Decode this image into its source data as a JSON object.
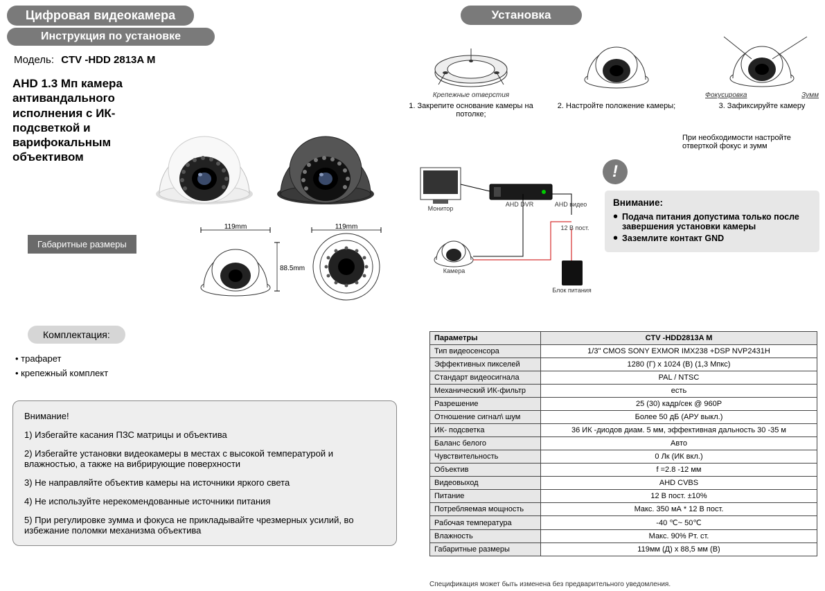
{
  "header": {
    "title": "Цифровая видеокамера",
    "subtitle": "Инструкция по установке",
    "model_label": "Модель:",
    "model_value": "CTV -HDD 2813A M",
    "description": "AHD 1.3 Мп камера антивандального исполнения с ИК-подсветкой  и варифокальным объективом",
    "dim_label": "Габаритные размеры",
    "dim_width": "119mm",
    "dim_height": "88.5mm"
  },
  "installation": {
    "title": "Установка",
    "mount_holes_label": "Крепежные отверстия",
    "focus_label": "Фокусировка",
    "zoom_label": "Зумм",
    "steps": [
      "1. Закрепите основание камеры на потолке;",
      "2. Настройте положение камеры;",
      "3. Зафиксируйте камеру"
    ],
    "adjust_note": "При необходимости настройте отверткой фокус и зумм"
  },
  "wiring": {
    "monitor": "Монитор",
    "dvr": "AHD DVR",
    "video": "AHD видео",
    "power_line": "12 В пост.",
    "camera": "Камера",
    "psu": "Блок питания"
  },
  "warning_box": {
    "heading": "Внимание:",
    "items": [
      "Подача питания допустима только после завершения установки камеры",
      "Заземлите контакт GND"
    ]
  },
  "kit": {
    "title": "Комплектация:",
    "items": [
      "трафарет",
      "крепежный комплект"
    ]
  },
  "attention": {
    "heading": "Внимание!",
    "items": [
      "1) Избегайте касания ПЗС матрицы и объектива",
      "2) Избегайте  установки видеокамеры в местах с высокой температурой и влажностью, а также на вибрирующие поверхности",
      "3) Не направляйте объектив камеры на источники яркого света",
      "4) Не используйте нерекомендованные источники питания",
      "5) При регулировке зумма и фокуса не прикладывайте чрезмерных усилий, во избежание поломки механизма объектива"
    ]
  },
  "specs": {
    "header_param": "Параметры",
    "header_value": "CTV -HDD2813A M",
    "rows": [
      {
        "p": "Тип видеосенсора",
        "v": "1/3\" CMOS SONY EXMOR IMX238 +DSP NVP2431H"
      },
      {
        "p": "Эффективных пикселей",
        "v": "1280 (Г) х 1024 (В) (1,3 Мпкс)"
      },
      {
        "p": "Стандарт видеосигнала",
        "v": "PAL / NTSC"
      },
      {
        "p": "Механический ИК-фильтр",
        "v": "есть"
      },
      {
        "p": "Разрешение",
        "v": "25 (30) кадр/сек @ 960P"
      },
      {
        "p": "Отношение сигнал\\ шум",
        "v": "Более 50 дБ (АРУ выкл.)"
      },
      {
        "p": "ИК- подсветка",
        "v": "36 ИК -диодов диам. 5 мм, эффективная дальность  30 -35 м"
      },
      {
        "p": "Баланс белого",
        "v": "Авто"
      },
      {
        "p": "Чувствительность",
        "v": "0 Лк (ИК вкл.)"
      },
      {
        "p": "Объектив",
        "v": "f =2.8 -12 мм"
      },
      {
        "p": "Видеовыход",
        "v": "AHD CVBS"
      },
      {
        "p": "Питание",
        "v": "12 В пост.  ±10%"
      },
      {
        "p": "Потребляемая мощность",
        "v": "Макс. 350 мА * 12 В пост."
      },
      {
        "p": "Рабочая температура",
        "v": "-40 ℃~ 50℃"
      },
      {
        "p": "Влажность",
        "v": "Макс. 90% Рт. ст."
      },
      {
        "p": "Габаритные размеры",
        "v": "119мм (Д) х 88,5 мм (В)"
      }
    ],
    "footnote": "Спецификация может быть изменена без предварительного уведомления."
  },
  "colors": {
    "pill_bg": "#7a7a7a",
    "box_bg": "#e7e7e7",
    "attention_bg": "#eeeeee",
    "white_cam": "#ffffff",
    "dark_cam": "#4a4a4a"
  }
}
